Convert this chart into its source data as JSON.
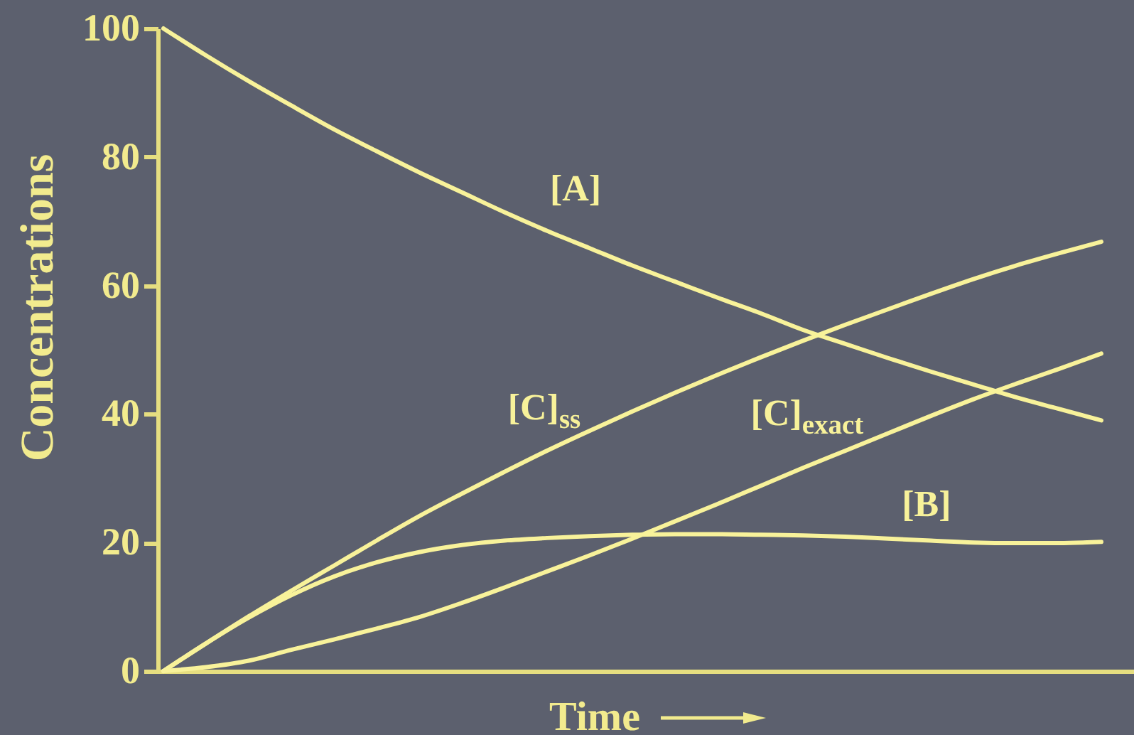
{
  "chart_data": {
    "type": "line",
    "xlabel": "Time",
    "ylabel": "Concentrations",
    "categories": [
      null,
      null,
      null,
      null,
      null,
      null,
      null,
      null,
      null,
      null,
      null,
      null,
      null,
      null,
      null,
      null,
      null,
      null,
      null,
      null,
      null,
      null,
      null
    ],
    "series": [
      {
        "name": "[A]",
        "color": "#f8f29a",
        "values": [
          100,
          95.8,
          91.8,
          88,
          84.3,
          80.9,
          77.6,
          74.5,
          71.4,
          68.5,
          65.8,
          63.1,
          60.6,
          58.1,
          55.7,
          53.1,
          50.9,
          48.7,
          46.6,
          44.6,
          42.6,
          40.8,
          39
        ]
      },
      {
        "name": "[C]$_{ss}$",
        "color": "#f8f29a",
        "values": [
          0,
          4.3,
          8.5,
          12.5,
          16.4,
          20.3,
          24.1,
          27.6,
          31,
          34.3,
          37.4,
          40.4,
          43.3,
          46.1,
          48.8,
          51.4,
          53.9,
          56.3,
          58.7,
          61,
          63.1,
          65,
          66.8
        ]
      },
      {
        "name": "[C]$_{exact}$",
        "color": "#f8f29a",
        "values": [
          0,
          0.6,
          1.6,
          3.3,
          4.9,
          6.6,
          8.4,
          10.6,
          13,
          15.5,
          18,
          20.6,
          23.3,
          26,
          28.8,
          31.6,
          34.3,
          37,
          39.7,
          42.3,
          44.7,
          47,
          49.4
        ]
      },
      {
        "name": "[B]",
        "color": "#f8f29a",
        "values": [
          0,
          4.3,
          8.3,
          11.8,
          14.7,
          16.9,
          18.5,
          19.6,
          20.3,
          20.7,
          21,
          21.2,
          21.3,
          21.3,
          21.2,
          21.1,
          20.9,
          20.6,
          20.3,
          20,
          19.9,
          19.9,
          20.1
        ]
      }
    ],
    "ylim": [
      0,
      100
    ],
    "yticks": [
      0,
      20,
      40,
      60,
      80,
      100
    ],
    "tick_labels": "y"
  }
}
